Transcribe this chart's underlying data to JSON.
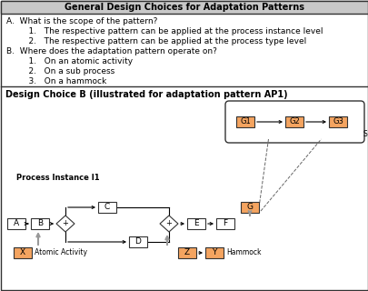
{
  "title_top": "General Design Choices for Adaptation Patterns",
  "title_bottom": "Design Choice B (illustrated for adaptation pattern AP1)",
  "text_lines": [
    [
      "A.  What is the scope of the pattern?",
      7,
      19,
      6.5,
      false
    ],
    [
      "    1.   The respective pattern can be applied at the process instance level",
      20,
      30,
      6.5,
      false
    ],
    [
      "    2.   The respective pattern can be applied at the process type level",
      20,
      41,
      6.5,
      false
    ],
    [
      "B.  Where does the adaptation pattern operate on?",
      7,
      52,
      6.5,
      false
    ],
    [
      "    1.   On an atomic activity",
      20,
      63,
      6.5,
      false
    ],
    [
      "    2.   On a sub process",
      20,
      74,
      6.5,
      false
    ],
    [
      "    3.   On a hammock",
      20,
      85,
      6.5,
      false
    ]
  ],
  "orange_fill": "#F4A460",
  "white_fill": "#FFFFFF",
  "gray_arrow": "#999999",
  "border_color": "#333333",
  "header_bg": "#C8C8C8",
  "background": "#FFFFFF",
  "process_instance_label": "Process Instance I1",
  "sub_process_label": "Sub Process",
  "atomic_activity_label": "Atomic Activity",
  "hammock_label": "Hammock"
}
